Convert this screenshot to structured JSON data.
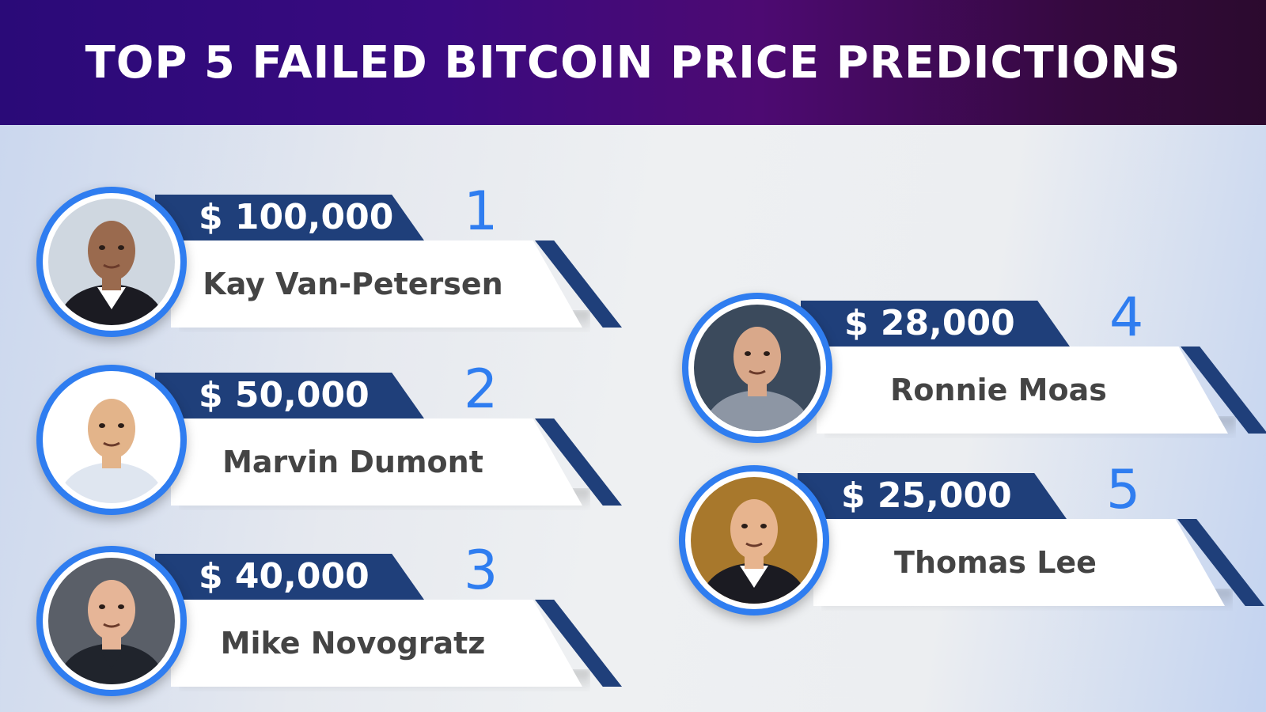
{
  "header": {
    "title": "TOP 5 FAILED BITCOIN PRICE PREDICTIONS"
  },
  "predictions": [
    {
      "rank": "1",
      "price": "$ 100,000",
      "name": "Kay Van-Petersen",
      "avatar_bg": "#cfd7e0",
      "skin": "#9a6a4e",
      "shirt": "#ffffff",
      "jacket": "#1b1b22"
    },
    {
      "rank": "2",
      "price": "$ 50,000",
      "name": "Marvin Dumont",
      "avatar_bg": "#ffffff",
      "skin": "#e3b48a",
      "shirt": "#dfe6f0",
      "jacket": "#dfe6f0"
    },
    {
      "rank": "3",
      "price": "$ 40,000",
      "name": "Mike Novogratz",
      "avatar_bg": "#5a5f68",
      "skin": "#e6b597",
      "shirt": "#20242c",
      "jacket": "#20242c"
    },
    {
      "rank": "4",
      "price": "$ 28,000",
      "name": "Ronnie Moas",
      "avatar_bg": "#3b4a5c",
      "skin": "#d9a88a",
      "shirt": "#8d96a4",
      "jacket": "#8d96a4"
    },
    {
      "rank": "5",
      "price": "$ 25,000",
      "name": "Thomas Lee",
      "avatar_bg": "#a8782c",
      "skin": "#e7b48e",
      "shirt": "#ffffff",
      "jacket": "#1b1b22"
    }
  ],
  "colors": {
    "accent_blue": "#2f7df0",
    "navy": "#1f3f7a",
    "name_text": "#444444"
  }
}
